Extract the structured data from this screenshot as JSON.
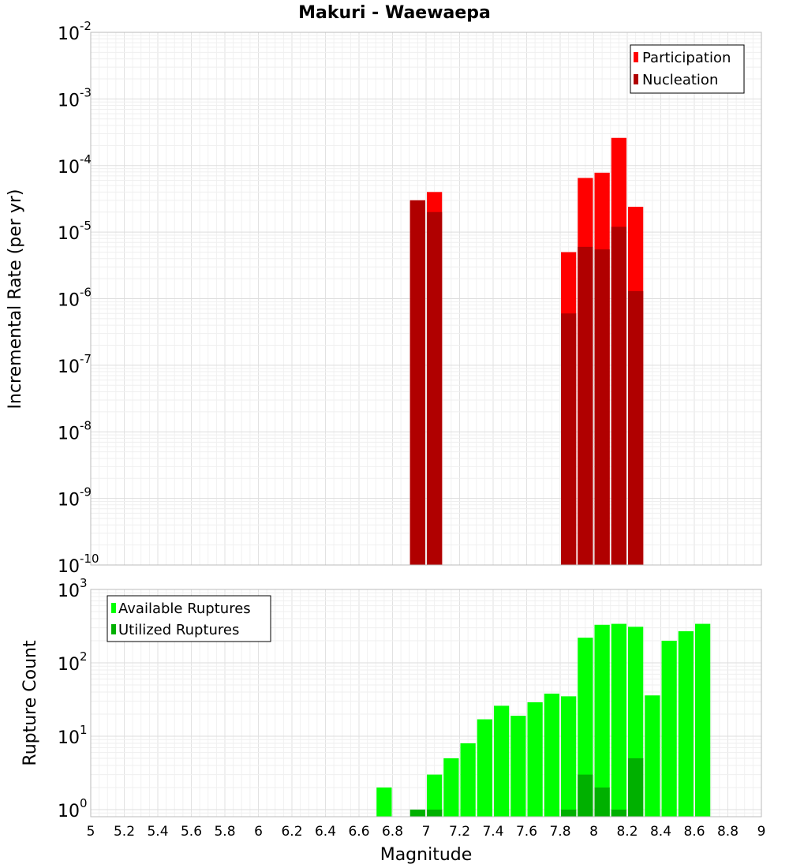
{
  "chart_data": [
    {
      "type": "bar",
      "title": "Makuri - Waewaepa",
      "xlabel": "",
      "ylabel": "Incremental Rate (per yr)",
      "yscale": "log",
      "ylim_exponents": [
        -10,
        -2
      ],
      "xlim": [
        5,
        9
      ],
      "bin_width": 0.1,
      "grid": true,
      "legend_position": "top-right",
      "series": [
        {
          "name": "Participation",
          "color": "#ff0000",
          "x": [
            6.95,
            7.05,
            7.85,
            7.95,
            8.05,
            8.15,
            8.25
          ],
          "values": [
            3e-05,
            4e-05,
            5e-06,
            6.5e-05,
            7.8e-05,
            0.00026,
            2.4e-05
          ]
        },
        {
          "name": "Nucleation",
          "color": "#b00000",
          "x": [
            6.95,
            7.05,
            7.85,
            7.95,
            8.05,
            8.15,
            8.25
          ],
          "values": [
            3e-05,
            2e-05,
            6e-07,
            6e-06,
            5.5e-06,
            1.2e-05,
            1.3e-06
          ]
        }
      ]
    },
    {
      "type": "bar",
      "title": "",
      "xlabel": "Magnitude",
      "ylabel": "Rupture Count",
      "yscale": "log",
      "ylim": [
        0.8,
        1000
      ],
      "ylim_exponents": [
        0,
        3
      ],
      "xlim": [
        5,
        9
      ],
      "bin_width": 0.1,
      "grid": true,
      "legend_position": "top-left",
      "series": [
        {
          "name": "Available Ruptures",
          "color": "#00ff00",
          "x": [
            6.75,
            7.05,
            7.15,
            7.25,
            7.35,
            7.45,
            7.55,
            7.65,
            7.75,
            7.85,
            7.95,
            8.05,
            8.15,
            8.25,
            8.35,
            8.45,
            8.55,
            8.65
          ],
          "values": [
            2,
            3,
            5,
            8,
            17,
            26,
            19,
            29,
            38,
            35,
            220,
            330,
            340,
            310,
            36,
            200,
            270,
            340
          ]
        },
        {
          "name": "Utilized Ruptures",
          "color": "#00b000",
          "x": [
            6.95,
            7.05,
            7.85,
            7.95,
            8.05,
            8.15,
            8.25
          ],
          "values": [
            1,
            1,
            1,
            3,
            2,
            1,
            5
          ]
        }
      ]
    }
  ],
  "x_ticks": [
    "5",
    "5.2",
    "5.4",
    "5.6",
    "5.8",
    "6",
    "6.2",
    "6.4",
    "6.6",
    "6.8",
    "7",
    "7.2",
    "7.4",
    "7.6",
    "7.8",
    "8",
    "8.2",
    "8.4",
    "8.6",
    "8.8",
    "9"
  ],
  "top_y_ticks": [
    {
      "base": "10",
      "exp": "-2"
    },
    {
      "base": "10",
      "exp": "-3"
    },
    {
      "base": "10",
      "exp": "-4"
    },
    {
      "base": "10",
      "exp": "-5"
    },
    {
      "base": "10",
      "exp": "-6"
    },
    {
      "base": "10",
      "exp": "-7"
    },
    {
      "base": "10",
      "exp": "-8"
    },
    {
      "base": "10",
      "exp": "-9"
    },
    {
      "base": "10",
      "exp": "-10"
    }
  ],
  "bottom_y_ticks": [
    {
      "base": "10",
      "exp": "3"
    },
    {
      "base": "10",
      "exp": "2"
    },
    {
      "base": "10",
      "exp": "1"
    },
    {
      "base": "10",
      "exp": "0"
    }
  ]
}
